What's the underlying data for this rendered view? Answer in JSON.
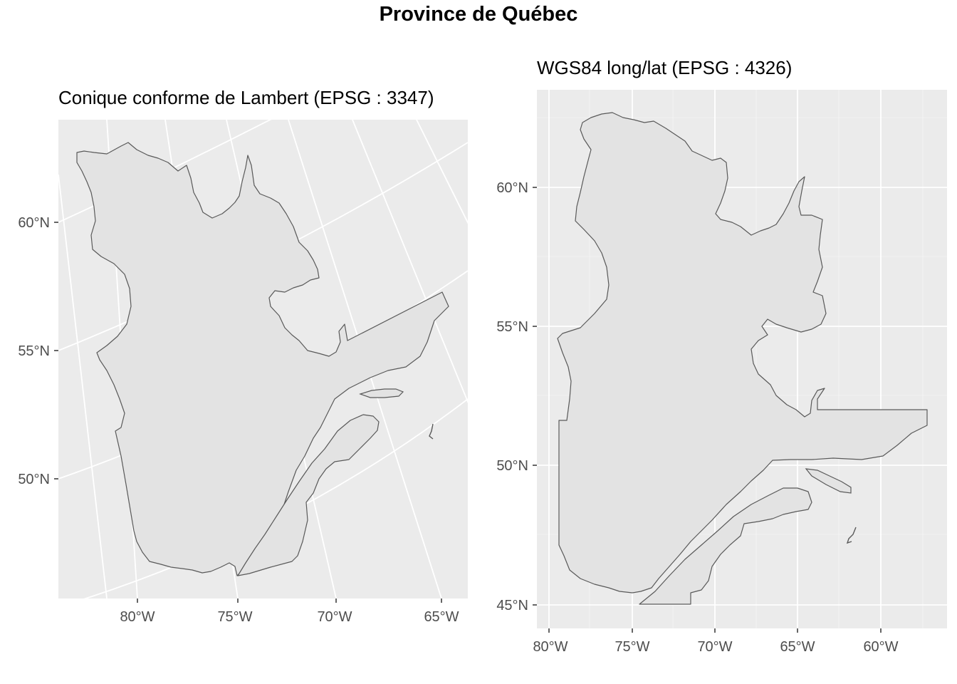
{
  "title": "Province de Québec",
  "panels": [
    {
      "id": "lambert",
      "title": "Conique conforme de Lambert (EPSG : 3347)",
      "y_ticks": [
        "60°N",
        "55°N",
        "50°N"
      ],
      "x_ticks": [
        "80°W",
        "75°W",
        "70°W",
        "65°W"
      ]
    },
    {
      "id": "wgs84",
      "title": "WGS84 long/lat (EPSG : 4326)",
      "y_ticks": [
        "60°N",
        "55°N",
        "50°N",
        "45°N"
      ],
      "x_ticks": [
        "80°W",
        "75°W",
        "70°W",
        "65°W",
        "60°W"
      ]
    }
  ],
  "colors": {
    "panel_bg": "#ebebeb",
    "grid": "#ffffff",
    "land_fill": "#e3e3e3",
    "outline": "#595959",
    "tick_text": "#4d4d4d"
  }
}
